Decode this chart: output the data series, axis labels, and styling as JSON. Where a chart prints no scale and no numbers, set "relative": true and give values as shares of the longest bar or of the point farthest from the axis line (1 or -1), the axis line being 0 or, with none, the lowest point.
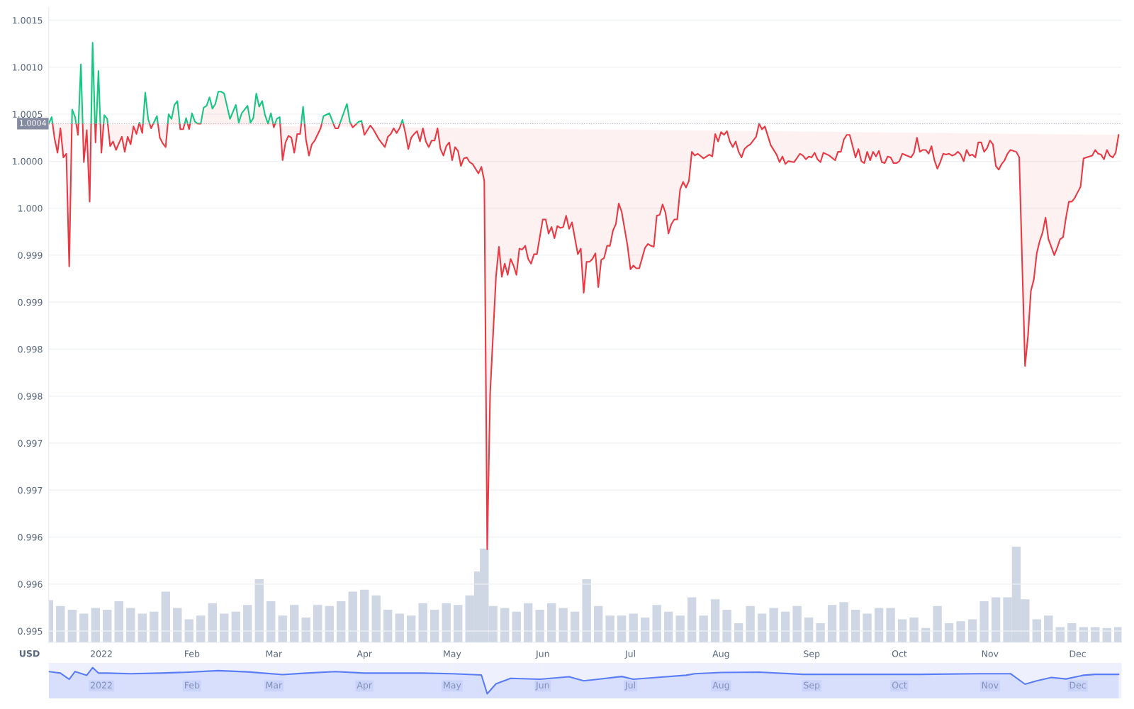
{
  "chart_data": [
    {
      "type": "area",
      "x": [
        "2021-12-14",
        "2021-12-15",
        "2021-12-16",
        "2021-12-17",
        "2021-12-18",
        "2021-12-19",
        "2021-12-20",
        "2021-12-21",
        "2021-12-22",
        "2021-12-23",
        "2021-12-24",
        "2021-12-25",
        "2021-12-26",
        "2021-12-27",
        "2021-12-28",
        "2021-12-29",
        "2021-12-30",
        "2021-12-31",
        "2022-01-01",
        "2022-01-02",
        "2022-01-03",
        "2022-01-04",
        "2022-01-05",
        "2022-01-06",
        "2022-01-08",
        "2022-01-09",
        "2022-01-10",
        "2022-01-11",
        "2022-01-12",
        "2022-01-13",
        "2022-01-14",
        "2022-01-15",
        "2022-01-16",
        "2022-01-17",
        "2022-01-18",
        "2022-01-20",
        "2022-01-21",
        "2022-01-22",
        "2022-01-23",
        "2022-01-24",
        "2022-01-25",
        "2022-01-26",
        "2022-01-27",
        "2022-01-28",
        "2022-01-29",
        "2022-01-30",
        "2022-01-31",
        "2022-02-01",
        "2022-02-02",
        "2022-02-03",
        "2022-02-04",
        "2022-02-05",
        "2022-02-06",
        "2022-02-07",
        "2022-02-08",
        "2022-02-09",
        "2022-02-10",
        "2022-02-11",
        "2022-02-12",
        "2022-02-14",
        "2022-02-16",
        "2022-02-17",
        "2022-02-18",
        "2022-02-20",
        "2022-02-21",
        "2022-02-22",
        "2022-02-23",
        "2022-02-24",
        "2022-02-25",
        "2022-02-26",
        "2022-02-27",
        "2022-02-28",
        "2022-03-01",
        "2022-03-02",
        "2022-03-03",
        "2022-03-04",
        "2022-03-05",
        "2022-03-06",
        "2022-03-07",
        "2022-03-08",
        "2022-03-09",
        "2022-03-10",
        "2022-03-11",
        "2022-03-12",
        "2022-03-13",
        "2022-03-14",
        "2022-03-15",
        "2022-03-17",
        "2022-03-18",
        "2022-03-20",
        "2022-03-22",
        "2022-03-23",
        "2022-03-26",
        "2022-03-27",
        "2022-03-28",
        "2022-03-30",
        "2022-03-31",
        "2022-04-01",
        "2022-04-03",
        "2022-04-04",
        "2022-04-06",
        "2022-04-08",
        "2022-04-09",
        "2022-04-10",
        "2022-04-11",
        "2022-04-12",
        "2022-04-13",
        "2022-04-14",
        "2022-04-15",
        "2022-04-16",
        "2022-04-17",
        "2022-04-18",
        "2022-04-19",
        "2022-04-20",
        "2022-04-21",
        "2022-04-22",
        "2022-04-23",
        "2022-04-24",
        "2022-04-25",
        "2022-04-26",
        "2022-04-27",
        "2022-04-28",
        "2022-04-29",
        "2022-04-30",
        "2022-05-01",
        "2022-05-02",
        "2022-05-03",
        "2022-05-04",
        "2022-05-05",
        "2022-05-06",
        "2022-05-07",
        "2022-05-08",
        "2022-05-09",
        "2022-05-10",
        "2022-05-11",
        "2022-05-12",
        "2022-05-13",
        "2022-05-14",
        "2022-05-16",
        "2022-05-17",
        "2022-05-18",
        "2022-05-19",
        "2022-05-20",
        "2022-05-21",
        "2022-05-22",
        "2022-05-23",
        "2022-05-24",
        "2022-05-25",
        "2022-05-26",
        "2022-05-27",
        "2022-05-28",
        "2022-05-29",
        "2022-05-30",
        "2022-06-01",
        "2022-06-02",
        "2022-06-03",
        "2022-06-04",
        "2022-06-05",
        "2022-06-06",
        "2022-06-07",
        "2022-06-08",
        "2022-06-09",
        "2022-06-10",
        "2022-06-11",
        "2022-06-13",
        "2022-06-14",
        "2022-06-15",
        "2022-06-16",
        "2022-06-17",
        "2022-06-18",
        "2022-06-19",
        "2022-06-20",
        "2022-06-21",
        "2022-06-22",
        "2022-06-23",
        "2022-06-24",
        "2022-06-25",
        "2022-06-26",
        "2022-06-27",
        "2022-06-28",
        "2022-06-30",
        "2022-07-01",
        "2022-07-02",
        "2022-07-03",
        "2022-07-04",
        "2022-07-05",
        "2022-07-06",
        "2022-07-07",
        "2022-07-08",
        "2022-07-09",
        "2022-07-10",
        "2022-07-11",
        "2022-07-12",
        "2022-07-13",
        "2022-07-14",
        "2022-07-15",
        "2022-07-16",
        "2022-07-17",
        "2022-07-18",
        "2022-07-19",
        "2022-07-20",
        "2022-07-21",
        "2022-07-22",
        "2022-07-23",
        "2022-07-24",
        "2022-07-26",
        "2022-07-28",
        "2022-07-29",
        "2022-07-30",
        "2022-07-31",
        "2022-08-01",
        "2022-08-02",
        "2022-08-03",
        "2022-08-04",
        "2022-08-05",
        "2022-08-06",
        "2022-08-07",
        "2022-08-08",
        "2022-08-09",
        "2022-08-10",
        "2022-08-11",
        "2022-08-12",
        "2022-08-13",
        "2022-08-14",
        "2022-08-15",
        "2022-08-16",
        "2022-08-18",
        "2022-08-20",
        "2022-08-21",
        "2022-08-22",
        "2022-08-23",
        "2022-08-24",
        "2022-08-26",
        "2022-08-28",
        "2022-08-29",
        "2022-08-30",
        "2022-08-31",
        "2022-09-01",
        "2022-09-02",
        "2022-09-03",
        "2022-09-04",
        "2022-09-05",
        "2022-09-07",
        "2022-09-09",
        "2022-09-10",
        "2022-09-11",
        "2022-09-12",
        "2022-09-13",
        "2022-09-14",
        "2022-09-16",
        "2022-09-17",
        "2022-09-18",
        "2022-09-19",
        "2022-09-20",
        "2022-09-21",
        "2022-09-22",
        "2022-09-23",
        "2022-09-24",
        "2022-09-25",
        "2022-09-26",
        "2022-09-27",
        "2022-09-28",
        "2022-09-29",
        "2022-09-30",
        "2022-10-01",
        "2022-10-02",
        "2022-10-05",
        "2022-10-06",
        "2022-10-07",
        "2022-10-08",
        "2022-10-09",
        "2022-10-10",
        "2022-10-11",
        "2022-10-12",
        "2022-10-13",
        "2022-10-14",
        "2022-10-15",
        "2022-10-16",
        "2022-10-17",
        "2022-10-18",
        "2022-10-19",
        "2022-10-20",
        "2022-10-21",
        "2022-10-22",
        "2022-10-23",
        "2022-10-24",
        "2022-10-25",
        "2022-10-26",
        "2022-10-27",
        "2022-10-28",
        "2022-10-29",
        "2022-10-30",
        "2022-10-31",
        "2022-11-01",
        "2022-11-02",
        "2022-11-03",
        "2022-11-04",
        "2022-11-05",
        "2022-11-06",
        "2022-11-07",
        "2022-11-08",
        "2022-11-10",
        "2022-11-11",
        "2022-11-13",
        "2022-11-14",
        "2022-11-15",
        "2022-11-16",
        "2022-11-17",
        "2022-11-18",
        "2022-11-19",
        "2022-11-20",
        "2022-11-21",
        "2022-11-23",
        "2022-11-24",
        "2022-11-25",
        "2022-11-26",
        "2022-11-27",
        "2022-11-28",
        "2022-11-29",
        "2022-11-30",
        "2022-12-01",
        "2022-12-02",
        "2022-12-03",
        "2022-12-04",
        "2022-12-05",
        "2022-12-06",
        "2022-12-07",
        "2022-12-08",
        "2022-12-09",
        "2022-12-10",
        "2022-12-11",
        "2022-12-12",
        "2022-12-13",
        "2022-12-14",
        "2022-12-15"
      ],
      "series": [
        {
          "color": "#ea3943",
          "values": [
            1.0004,
            1.00047,
            1.00024,
            1.00009,
            1.00035,
            1.00004,
            1.00008,
            0.99888,
            1.00055,
            1.00047,
            1.00028,
            1.00103,
            0.99999,
            1.00033,
            0.99957,
            1.00126,
            1.0002,
            1.00096,
            1.00009,
            1.00049,
            1.00045,
            1.00016,
            1.00021,
            1.00012,
            1.00026,
            1.0001,
            1.00026,
            1.00018,
            1.00037,
            1.00029,
            1.00041,
            1.0003,
            1.00073,
            1.00045,
            1.00035,
            1.00048,
            1.00025,
            1.00019,
            1.00015,
            1.0005,
            1.00045,
            1.0006,
            1.00064,
            1.00034,
            1.00034,
            1.00046,
            1.00034,
            1.00051,
            1.00042,
            1.0004,
            1.0004,
            1.00057,
            1.00059,
            1.00068,
            1.00056,
            1.00061,
            1.00074,
            1.00074,
            1.00072,
            1.00045,
            1.0006,
            1.00041,
            1.00051,
            1.00059,
            1.00041,
            1.00046,
            1.00072,
            1.00058,
            1.00064,
            1.00049,
            1.0004,
            1.00051,
            1.00036,
            1.00045,
            1.00047,
            1.00001,
            1.0002,
            1.00027,
            1.00025,
            1.00009,
            1.00029,
            1.00029,
            1.00058,
            1.00023,
            1.00006,
            1.00018,
            1.00022,
            1.00035,
            1.00048,
            1.00051,
            1.00035,
            1.00035,
            1.00061,
            1.00042,
            1.00036,
            1.00042,
            1.00043,
            1.00028,
            1.00038,
            1.00034,
            1.00023,
            1.00015,
            1.00026,
            1.00029,
            1.00035,
            1.0003,
            1.00035,
            1.00044,
            1.0003,
            1.00013,
            1.00025,
            1.00029,
            1.00032,
            1.00021,
            1.00035,
            1.00021,
            1.00015,
            1.00022,
            1.00022,
            1.00035,
            1.00013,
            1.00006,
            1.00016,
            1.0002,
            1.00001,
            1.00015,
            1.00011,
            0.99995,
            1.00003,
            1.00004,
            0.99999,
            0.99997,
            0.99992,
            0.99987,
            0.99994,
            0.99979,
            0.99587,
            0.99753,
            0.99877,
            0.99909,
            0.99877,
            0.99891,
            0.99879,
            0.99896,
            0.99889,
            0.99879,
            0.99907,
            0.99906,
            0.9991,
            0.99896,
            0.99891,
            0.99901,
            0.99901,
            0.99938,
            0.99938,
            0.99923,
            0.9993,
            0.99918,
            0.99931,
            0.99929,
            0.9993,
            0.99942,
            0.99928,
            0.99935,
            0.99901,
            0.99907,
            0.9986,
            0.99893,
            0.99893,
            0.99896,
            0.99902,
            0.99866,
            0.99895,
            0.99897,
            0.9991,
            0.9991,
            0.99926,
            0.99933,
            0.99955,
            0.99946,
            0.9991,
            0.99885,
            0.99889,
            0.99886,
            0.99886,
            0.99897,
            0.99908,
            0.99912,
            0.9991,
            0.99909,
            0.99942,
            0.99943,
            0.99954,
            0.99945,
            0.99923,
            0.99933,
            0.99938,
            0.99938,
            0.9997,
            0.99978,
            0.99972,
            0.99979,
            1.0001,
            1.00006,
            1.00008,
            1.00003,
            1.00007,
            1.00005,
            1.00029,
            1.00021,
            1.00031,
            1.00028,
            1.00032,
            1.00021,
            1.00015,
            1.00021,
            1.0001,
            1.00004,
            1.00013,
            1.00016,
            1.00018,
            1.00022,
            1.00026,
            1.0004,
            1.00034,
            1.00037,
            1.00017,
            1.00007,
            0.99999,
            1.00005,
            0.99997,
            1.0,
            0.99999,
            1.00008,
            1.00006,
            1.00002,
            1.00005,
            1.00004,
            1.00009,
            1.00002,
            0.99999,
            1.00009,
            1.00006,
            1.00001,
            1.0001,
            1.0001,
            1.00023,
            1.00028,
            1.00028,
            1.00004,
            1.00013,
            1.0,
            0.99998,
            1.0001,
            1.00001,
            1.0001,
            1.00005,
            1.00011,
            0.99999,
            0.99998,
            1.00005,
            1.00004,
            0.99998,
            0.99998,
            1.0,
            1.00008,
            1.00004,
            1.00009,
            1.00025,
            1.0001,
            1.00012,
            1.00012,
            1.00008,
            1.00016,
            1.00001,
            0.99992,
            0.99999,
            1.00008,
            1.00007,
            1.00008,
            1.00006,
            1.00007,
            1.0001,
            1.00007,
            1.0,
            1.00012,
            1.00006,
            1.00007,
            1.00004,
            1.0002,
            1.0002,
            1.0001,
            1.00014,
            1.00022,
            1.00018,
            0.99995,
            0.99991,
            0.99997,
            1.00001,
            1.00008,
            1.00012,
            1.0001,
            1.00004,
            0.99782,
            0.99814,
            0.99862,
            0.99874,
            0.99902,
            0.99915,
            0.99924,
            0.9994,
            0.99917,
            0.999,
            0.99908,
            0.99917,
            0.99919,
            0.9994,
            0.99957,
            0.99957,
            0.99961,
            0.99967,
            0.99973,
            1.00003,
            1.00004,
            1.00005,
            1.00006,
            1.00012,
            1.00008,
            1.00007,
            1.00002,
            1.00012,
            1.00006,
            1.00004,
            1.00009,
            1.00028
          ],
          "colors": [
            "#16c784",
            "#16c784",
            "#ea3943",
            "#ea3943",
            "#ea3943",
            "#ea3943",
            "#ea3943",
            "#ea3943",
            "#16c784",
            "#16c784",
            "#ea3943",
            "#16c784",
            "#ea3943",
            "#ea3943",
            "#ea3943",
            "#16c784",
            "#ea3943",
            "#16c784",
            "#ea3943",
            "#16c784",
            "#16c784",
            "#ea3943",
            "#ea3943",
            "#ea3943",
            "#ea3943",
            "#ea3943",
            "#ea3943",
            "#ea3943",
            "#ea3943",
            "#ea3943",
            "#16c784",
            "#ea3943",
            "#16c784",
            "#16c784",
            "#ea3943",
            "#16c784",
            "#ea3943",
            "#ea3943",
            "#ea3943",
            "#16c784",
            "#16c784",
            "#16c784",
            "#16c784",
            "#ea3943",
            "#ea3943",
            "#16c784",
            "#ea3943",
            "#16c784",
            "#16c784",
            "#16c784",
            "#16c784",
            "#16c784",
            "#16c784",
            "#16c784",
            "#16c784",
            "#16c784",
            "#16c784",
            "#16c784",
            "#16c784",
            "#16c784",
            "#16c784",
            "#16c784",
            "#16c784",
            "#16c784",
            "#16c784",
            "#16c784",
            "#16c784",
            "#16c784",
            "#16c784",
            "#16c784",
            "#16c784",
            "#16c784",
            "#ea3943",
            "#16c784",
            "#16c784",
            "#ea3943",
            "#ea3943",
            "#ea3943",
            "#ea3943",
            "#ea3943",
            "#ea3943",
            "#ea3943",
            "#16c784",
            "#ea3943",
            "#ea3943",
            "#ea3943",
            "#ea3943",
            "#ea3943",
            "#16c784",
            "#16c784",
            "#ea3943",
            "#ea3943",
            "#16c784",
            "#16c784",
            "#ea3943",
            "#16c784",
            "#16c784",
            "#ea3943",
            "#ea3943",
            "#ea3943",
            "#ea3943",
            "#ea3943",
            "#ea3943",
            "#ea3943",
            "#ea3943",
            "#ea3943",
            "#ea3943",
            "#16c784",
            "#ea3943",
            "#ea3943",
            "#ea3943",
            "#ea3943",
            "#ea3943",
            "#ea3943",
            "#ea3943",
            "#ea3943",
            "#ea3943",
            "#ea3943",
            "#ea3943",
            "#ea3943",
            "#ea3943",
            "#ea3943",
            "#ea3943",
            "#ea3943",
            "#ea3943",
            "#ea3943",
            "#ea3943",
            "#ea3943",
            "#ea3943",
            "#ea3943",
            "#ea3943",
            "#ea3943",
            "#ea3943",
            "#ea3943",
            "#ea3943",
            "#ea3943",
            "#ea3943",
            "#ea3943",
            "#ea3943",
            "#ea3943",
            "#ea3943",
            "#ea3943",
            "#ea3943",
            "#ea3943",
            "#ea3943",
            "#ea3943",
            "#ea3943",
            "#ea3943",
            "#ea3943",
            "#ea3943",
            "#ea3943",
            "#ea3943",
            "#ea3943",
            "#ea3943",
            "#ea3943",
            "#ea3943",
            "#ea3943",
            "#ea3943",
            "#ea3943",
            "#ea3943",
            "#ea3943",
            "#ea3943",
            "#ea3943",
            "#ea3943",
            "#ea3943",
            "#ea3943",
            "#ea3943",
            "#ea3943",
            "#ea3943",
            "#ea3943",
            "#ea3943",
            "#ea3943",
            "#ea3943",
            "#ea3943",
            "#ea3943",
            "#ea3943",
            "#ea3943",
            "#ea3943",
            "#ea3943",
            "#ea3943",
            "#ea3943",
            "#ea3943",
            "#ea3943",
            "#ea3943",
            "#ea3943",
            "#ea3943",
            "#ea3943",
            "#ea3943",
            "#ea3943",
            "#ea3943",
            "#ea3943",
            "#ea3943",
            "#ea3943",
            "#ea3943",
            "#ea3943",
            "#ea3943",
            "#ea3943",
            "#ea3943",
            "#ea3943",
            "#ea3943",
            "#ea3943",
            "#ea3943",
            "#ea3943",
            "#ea3943",
            "#ea3943",
            "#ea3943",
            "#ea3943",
            "#ea3943",
            "#ea3943",
            "#ea3943",
            "#ea3943",
            "#ea3943",
            "#ea3943",
            "#ea3943",
            "#ea3943",
            "#ea3943",
            "#ea3943",
            "#ea3943",
            "#ea3943",
            "#ea3943",
            "#ea3943",
            "#ea3943",
            "#ea3943",
            "#16c784",
            "#ea3943",
            "#ea3943",
            "#ea3943",
            "#ea3943",
            "#ea3943",
            "#ea3943",
            "#ea3943",
            "#ea3943",
            "#ea3943",
            "#ea3943",
            "#ea3943",
            "#ea3943",
            "#ea3943",
            "#ea3943",
            "#ea3943",
            "#ea3943",
            "#ea3943",
            "#ea3943",
            "#ea3943",
            "#ea3943",
            "#ea3943",
            "#ea3943",
            "#ea3943",
            "#ea3943",
            "#ea3943",
            "#ea3943",
            "#ea3943",
            "#ea3943",
            "#ea3943",
            "#ea3943",
            "#ea3943",
            "#ea3943",
            "#ea3943",
            "#ea3943",
            "#ea3943",
            "#ea3943",
            "#ea3943",
            "#ea3943",
            "#ea3943",
            "#ea3943",
            "#ea3943",
            "#ea3943",
            "#ea3943",
            "#ea3943",
            "#ea3943",
            "#ea3943",
            "#ea3943",
            "#ea3943",
            "#ea3943",
            "#ea3943",
            "#ea3943",
            "#ea3943",
            "#ea3943",
            "#ea3943",
            "#ea3943",
            "#ea3943",
            "#ea3943",
            "#ea3943",
            "#ea3943",
            "#ea3943",
            "#ea3943",
            "#ea3943",
            "#ea3943",
            "#ea3943",
            "#ea3943",
            "#ea3943",
            "#ea3943",
            "#ea3943",
            "#ea3943",
            "#ea3943",
            "#ea3943",
            "#ea3943",
            "#ea3943",
            "#ea3943",
            "#ea3943",
            "#ea3943",
            "#ea3943",
            "#ea3943",
            "#ea3943",
            "#ea3943",
            "#ea3943",
            "#ea3943",
            "#ea3943",
            "#ea3943",
            "#ea3943",
            "#ea3943",
            "#ea3943",
            "#ea3943",
            "#ea3943",
            "#ea3943",
            "#ea3943",
            "#ea3943",
            "#ea3943",
            "#ea3943",
            "#ea3943",
            "#ea3943",
            "#ea3943",
            "#ea3943",
            "#ea3943",
            "#ea3943",
            "#ea3943",
            "#ea3943",
            "#ea3943",
            "#ea3943",
            "#ea3943",
            "#ea3943",
            "#ea3943",
            "#ea3943",
            "#ea3943",
            "#ea3943",
            "#ea3943"
          ]
        }
      ],
      "xlim": [
        "2021-12-14",
        "2022-12-16"
      ],
      "xticks": [
        {
          "value": "2022-01-01",
          "label": "2022"
        },
        {
          "value": "2022-02-01",
          "label": "Feb"
        },
        {
          "value": "2022-03-01",
          "label": "Mar"
        },
        {
          "value": "2022-04-01",
          "label": "Apr"
        },
        {
          "value": "2022-05-01",
          "label": "May"
        },
        {
          "value": "2022-06-01",
          "label": "Jun"
        },
        {
          "value": "2022-07-01",
          "label": "Jul"
        },
        {
          "value": "2022-08-01",
          "label": "Aug"
        },
        {
          "value": "2022-09-01",
          "label": "Sep"
        },
        {
          "value": "2022-10-01",
          "label": "Oct"
        },
        {
          "value": "2022-11-01",
          "label": "Nov"
        },
        {
          "value": "2022-12-01",
          "label": "Dec"
        }
      ],
      "ylim": [
        0.99488,
        1.00164
      ],
      "yticks": [
        1.0015,
        {
          "value": 1.001,
          "label": "1.0010"
        },
        1.0005,
        {
          "value": 1.0,
          "label": "1.0000"
        },
        {
          "value": 0.9995,
          "label": "1.000"
        },
        0.999,
        {
          "value": 0.9985,
          "label": "0.999"
        },
        0.998,
        {
          "value": 0.9975,
          "label": "0.998"
        },
        0.997,
        {
          "value": 0.9965,
          "label": "0.997"
        },
        0.996,
        {
          "value": 0.9955,
          "label": "0.996"
        },
        0.995
      ],
      "ref_lines": [
        {
          "axis": "y",
          "value": 1.0004,
          "label": "1.0004",
          "color": "#858ca2",
          "line_style": "dotted"
        }
      ],
      "grid": "y",
      "annotations": [
        "USD"
      ]
    },
    {
      "type": "bar",
      "relative": true,
      "x": [
        "2021-12-14",
        "2021-12-18",
        "2021-12-22",
        "2021-12-26",
        "2021-12-30",
        "2022-01-03",
        "2022-01-07",
        "2022-01-11",
        "2022-01-15",
        "2022-01-19",
        "2022-01-23",
        "2022-01-27",
        "2022-01-31",
        "2022-02-04",
        "2022-02-08",
        "2022-02-12",
        "2022-02-16",
        "2022-02-20",
        "2022-02-24",
        "2022-02-28",
        "2022-03-04",
        "2022-03-08",
        "2022-03-12",
        "2022-03-16",
        "2022-03-20",
        "2022-03-24",
        "2022-03-28",
        "2022-04-01",
        "2022-04-05",
        "2022-04-09",
        "2022-04-13",
        "2022-04-17",
        "2022-04-21",
        "2022-04-25",
        "2022-04-29",
        "2022-05-03",
        "2022-05-07",
        "2022-05-10",
        "2022-05-12",
        "2022-05-15",
        "2022-05-19",
        "2022-05-23",
        "2022-05-27",
        "2022-05-31",
        "2022-06-04",
        "2022-06-08",
        "2022-06-12",
        "2022-06-16",
        "2022-06-20",
        "2022-06-24",
        "2022-06-28",
        "2022-07-02",
        "2022-07-06",
        "2022-07-10",
        "2022-07-14",
        "2022-07-18",
        "2022-07-22",
        "2022-07-26",
        "2022-07-30",
        "2022-08-03",
        "2022-08-07",
        "2022-08-11",
        "2022-08-15",
        "2022-08-19",
        "2022-08-23",
        "2022-08-27",
        "2022-08-31",
        "2022-09-04",
        "2022-09-08",
        "2022-09-12",
        "2022-09-16",
        "2022-09-20",
        "2022-09-24",
        "2022-09-28",
        "2022-10-02",
        "2022-10-06",
        "2022-10-10",
        "2022-10-14",
        "2022-10-18",
        "2022-10-22",
        "2022-10-26",
        "2022-10-30",
        "2022-11-03",
        "2022-11-07",
        "2022-11-10",
        "2022-11-13",
        "2022-11-17",
        "2022-11-21",
        "2022-11-25",
        "2022-11-29",
        "2022-12-03",
        "2022-12-07",
        "2022-12-11",
        "2022-12-15"
      ],
      "series": [
        {
          "color": "#cfd6e4",
          "values": [
            0.44,
            0.38,
            0.34,
            0.3,
            0.36,
            0.34,
            0.43,
            0.36,
            0.3,
            0.32,
            0.53,
            0.36,
            0.24,
            0.28,
            0.41,
            0.3,
            0.32,
            0.39,
            0.66,
            0.43,
            0.28,
            0.39,
            0.26,
            0.39,
            0.38,
            0.43,
            0.53,
            0.55,
            0.49,
            0.34,
            0.3,
            0.28,
            0.41,
            0.34,
            0.41,
            0.39,
            0.49,
            0.74,
            0.98,
            0.38,
            0.36,
            0.32,
            0.41,
            0.34,
            0.41,
            0.36,
            0.32,
            0.66,
            0.38,
            0.28,
            0.28,
            0.3,
            0.26,
            0.39,
            0.32,
            0.28,
            0.47,
            0.28,
            0.45,
            0.34,
            0.2,
            0.38,
            0.3,
            0.36,
            0.32,
            0.38,
            0.26,
            0.2,
            0.39,
            0.42,
            0.34,
            0.3,
            0.36,
            0.36,
            0.24,
            0.26,
            0.15,
            0.38,
            0.2,
            0.22,
            0.24,
            0.43,
            0.47,
            0.47,
            1,
            0.45,
            0.24,
            0.28,
            0.16,
            0.2,
            0.16,
            0.16,
            0.15,
            0.16
          ]
        }
      ],
      "xlim": [
        "2021-12-14",
        "2022-12-16"
      ],
      "tick_labels": false
    },
    {
      "type": "area",
      "relative": true,
      "x": [
        "2021-12-14",
        "2021-12-18",
        "2021-12-21",
        "2021-12-23",
        "2021-12-27",
        "2021-12-29",
        "2021-12-31",
        "2022-01-03",
        "2022-01-11",
        "2022-01-21",
        "2022-01-31",
        "2022-02-10",
        "2022-02-20",
        "2022-03-04",
        "2022-03-12",
        "2022-03-22",
        "2022-04-01",
        "2022-04-11",
        "2022-04-21",
        "2022-05-01",
        "2022-05-11",
        "2022-05-13",
        "2022-05-16",
        "2022-05-21",
        "2022-05-31",
        "2022-06-10",
        "2022-06-15",
        "2022-06-20",
        "2022-06-28",
        "2022-07-02",
        "2022-07-10",
        "2022-07-20",
        "2022-07-23",
        "2022-08-01",
        "2022-08-14",
        "2022-08-29",
        "2022-09-18",
        "2022-10-08",
        "2022-10-28",
        "2022-11-08",
        "2022-11-13",
        "2022-11-17",
        "2022-11-22",
        "2022-11-27",
        "2022-12-03",
        "2022-12-07",
        "2022-12-15"
      ],
      "series": [
        {
          "color": "#5b7cf7",
          "values": [
            0.87,
            0.82,
            0.62,
            0.87,
            0.75,
            1,
            0.82,
            0.82,
            0.8,
            0.82,
            0.85,
            0.9,
            0.86,
            0.77,
            0.82,
            0.87,
            0.82,
            0.82,
            0.82,
            0.8,
            0.76,
            0.15,
            0.47,
            0.65,
            0.62,
            0.7,
            0.57,
            0.62,
            0.71,
            0.62,
            0.68,
            0.75,
            0.8,
            0.84,
            0.85,
            0.78,
            0.78,
            0.78,
            0.8,
            0.8,
            0.46,
            0.57,
            0.68,
            0.63,
            0.75,
            0.78,
            0.78
          ]
        }
      ],
      "xlim": [
        "2021-12-14",
        "2022-12-16"
      ],
      "xticks": [
        {
          "value": "2022-01-01",
          "label": "2022"
        },
        {
          "value": "2022-02-01",
          "label": "Feb"
        },
        {
          "value": "2022-03-01",
          "label": "Mar"
        },
        {
          "value": "2022-04-01",
          "label": "Apr"
        },
        {
          "value": "2022-05-01",
          "label": "May"
        },
        {
          "value": "2022-06-01",
          "label": "Jun"
        },
        {
          "value": "2022-07-01",
          "label": "Jul"
        },
        {
          "value": "2022-08-01",
          "label": "Aug"
        },
        {
          "value": "2022-09-01",
          "label": "Sep"
        },
        {
          "value": "2022-10-01",
          "label": "Oct"
        },
        {
          "value": "2022-11-01",
          "label": "Nov"
        },
        {
          "value": "2022-12-01",
          "label": "Dec"
        }
      ],
      "tick_labels": "x",
      "grid": "x"
    }
  ]
}
